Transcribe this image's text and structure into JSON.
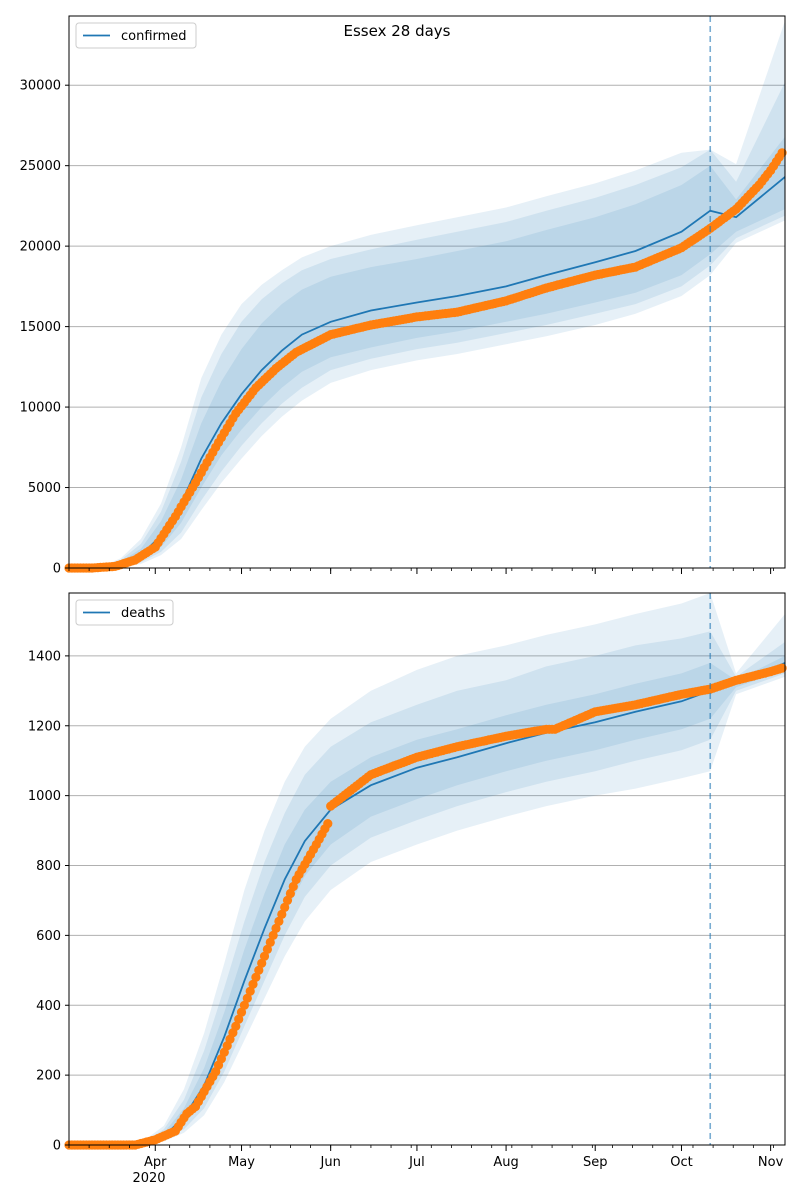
{
  "figure": {
    "title": "Essex 28 days"
  },
  "colors": {
    "model_line": "#1f77b4",
    "band": "#1f77b4",
    "observed": "#ff7f0e",
    "vline": "#1f77b4",
    "grid": "#b0b0b0",
    "axes": "#000000"
  },
  "x_axis": {
    "month_labels": [
      "Apr",
      "May",
      "Jun",
      "Jul",
      "Aug",
      "Sep",
      "Oct",
      "Nov"
    ],
    "year_label": "2020"
  },
  "chart_data": [
    {
      "type": "line",
      "legend": "confirmed",
      "legend_position": "top-left",
      "grid": "horizontal",
      "xlim": [
        "2020-03-02",
        "2020-11-06"
      ],
      "ylim": [
        0,
        34300
      ],
      "yticks": [
        "0",
        "5000",
        "10000",
        "15000",
        "20000",
        "25000",
        "30000"
      ],
      "ytick_values": [
        0,
        5000,
        10000,
        15000,
        20000,
        25000,
        30000
      ],
      "forecast_start": "2020-10-11",
      "series": [
        {
          "name": "confirmed",
          "kind": "model",
          "x": [
            "2020-03-02",
            "2020-03-12",
            "2020-03-20",
            "2020-03-27",
            "2020-04-03",
            "2020-04-10",
            "2020-04-17",
            "2020-04-24",
            "2020-05-01",
            "2020-05-08",
            "2020-05-15",
            "2020-05-22",
            "2020-06-01",
            "2020-06-15",
            "2020-07-01",
            "2020-07-15",
            "2020-08-01",
            "2020-08-15",
            "2020-09-01",
            "2020-09-15",
            "2020-10-01",
            "2020-10-11",
            "2020-10-20",
            "2020-11-06"
          ],
          "y": [
            0,
            0,
            200,
            800,
            2000,
            4000,
            6800,
            9000,
            10800,
            12300,
            13500,
            14500,
            15300,
            16000,
            16500,
            16900,
            17500,
            18200,
            19000,
            19700,
            20900,
            22200,
            21800,
            24300
          ],
          "bands": [
            {
              "lower": [
                0,
                0,
                100,
                500,
                1300,
                2800,
                5000,
                7000,
                8600,
                10000,
                11200,
                12200,
                13100,
                13700,
                14300,
                14700,
                15300,
                15800,
                16500,
                17100,
                18200,
                19500,
                20900,
                22300
              ],
              "upper": [
                0,
                0,
                400,
                1200,
                2900,
                5500,
                9000,
                11600,
                13600,
                15200,
                16400,
                17300,
                18100,
                18700,
                19200,
                19700,
                20300,
                21000,
                21800,
                22600,
                23800,
                25000,
                22900,
                26800
              ]
            },
            {
              "lower": [
                0,
                0,
                50,
                350,
                1000,
                2200,
                4200,
                6000,
                7600,
                9000,
                10200,
                11200,
                12300,
                13000,
                13600,
                14000,
                14600,
                15100,
                15800,
                16400,
                17500,
                18800,
                20500,
                21900
              ],
              "upper": [
                0,
                0,
                500,
                1500,
                3500,
                6600,
                10600,
                13300,
                15300,
                16700,
                17700,
                18500,
                19200,
                19800,
                20400,
                20900,
                21500,
                22200,
                23000,
                23800,
                24900,
                26000,
                24000,
                30200
              ]
            },
            {
              "lower": [
                0,
                0,
                20,
                250,
                800,
                1800,
                3600,
                5300,
                6800,
                8200,
                9400,
                10400,
                11500,
                12300,
                12900,
                13300,
                13900,
                14400,
                15100,
                15800,
                16900,
                18200,
                20200,
                21600
              ],
              "upper": [
                0,
                0,
                600,
                1800,
                4000,
                7500,
                11800,
                14500,
                16400,
                17600,
                18500,
                19300,
                20000,
                20700,
                21300,
                21800,
                22400,
                23100,
                23900,
                24700,
                25800,
                26000,
                25100,
                34000
              ]
            }
          ]
        },
        {
          "name": "",
          "kind": "observed",
          "x": [
            "2020-03-02",
            "2020-03-10",
            "2020-03-18",
            "2020-03-25",
            "2020-04-01",
            "2020-04-08",
            "2020-04-15",
            "2020-04-22",
            "2020-04-29",
            "2020-05-06",
            "2020-05-13",
            "2020-05-20",
            "2020-06-01",
            "2020-06-15",
            "2020-07-01",
            "2020-07-15",
            "2020-08-01",
            "2020-08-15",
            "2020-09-01",
            "2020-09-15",
            "2020-10-01",
            "2020-10-11",
            "2020-10-20",
            "2020-10-28",
            "2020-11-01",
            "2020-11-05"
          ],
          "y": [
            0,
            0,
            100,
            500,
            1300,
            3200,
            5300,
            7500,
            9600,
            11200,
            12400,
            13400,
            14500,
            15100,
            15600,
            15900,
            16600,
            17400,
            18200,
            18700,
            19900,
            21100,
            22300,
            23800,
            24700,
            25800
          ]
        }
      ]
    },
    {
      "type": "line",
      "legend": "deaths",
      "legend_position": "top-left",
      "grid": "horizontal",
      "xlim": [
        "2020-03-02",
        "2020-11-06"
      ],
      "ylim": [
        0,
        1580
      ],
      "yticks": [
        "0",
        "200",
        "400",
        "600",
        "800",
        "1000",
        "1200",
        "1400"
      ],
      "ytick_values": [
        0,
        200,
        400,
        600,
        800,
        1000,
        1200,
        1400
      ],
      "forecast_start": "2020-10-11",
      "series": [
        {
          "name": "deaths",
          "kind": "model",
          "x": [
            "2020-03-02",
            "2020-03-20",
            "2020-03-28",
            "2020-04-04",
            "2020-04-11",
            "2020-04-18",
            "2020-04-25",
            "2020-05-02",
            "2020-05-09",
            "2020-05-16",
            "2020-05-23",
            "2020-06-01",
            "2020-06-15",
            "2020-07-01",
            "2020-07-15",
            "2020-08-01",
            "2020-08-15",
            "2020-09-01",
            "2020-09-15",
            "2020-10-01",
            "2020-10-11",
            "2020-10-20",
            "2020-11-06"
          ],
          "y": [
            0,
            0,
            5,
            25,
            80,
            170,
            310,
            470,
            620,
            760,
            870,
            960,
            1030,
            1080,
            1110,
            1150,
            1180,
            1210,
            1240,
            1270,
            1300,
            1320,
            1380
          ],
          "bands": [
            {
              "lower": [
                0,
                0,
                3,
                18,
                60,
                130,
                250,
                390,
                530,
                660,
                770,
                860,
                940,
                990,
                1030,
                1070,
                1100,
                1130,
                1160,
                1190,
                1220,
                1310,
                1360
              ],
              "upper": [
                0,
                0,
                7,
                35,
                105,
                220,
                380,
                560,
                720,
                860,
                960,
                1040,
                1110,
                1160,
                1190,
                1230,
                1260,
                1290,
                1320,
                1350,
                1380,
                1330,
                1400
              ]
            },
            {
              "lower": [
                0,
                0,
                2,
                14,
                45,
                105,
                210,
                340,
                470,
                600,
                710,
                800,
                880,
                930,
                970,
                1010,
                1040,
                1070,
                1100,
                1130,
                1160,
                1300,
                1350
              ],
              "upper": [
                0,
                0,
                9,
                45,
                130,
                270,
                450,
                640,
                810,
                950,
                1060,
                1140,
                1210,
                1260,
                1300,
                1330,
                1370,
                1400,
                1430,
                1450,
                1470,
                1340,
                1440
              ]
            },
            {
              "lower": [
                0,
                0,
                1,
                10,
                35,
                85,
                180,
                300,
                420,
                540,
                640,
                730,
                810,
                860,
                900,
                940,
                970,
                1000,
                1020,
                1050,
                1070,
                1290,
                1340
              ],
              "upper": [
                0,
                0,
                12,
                55,
                160,
                320,
                520,
                730,
                900,
                1040,
                1140,
                1220,
                1300,
                1360,
                1400,
                1430,
                1460,
                1490,
                1520,
                1550,
                1580,
                1350,
                1520
              ]
            }
          ]
        },
        {
          "name": "",
          "kind": "observed",
          "x": [
            "2020-03-02",
            "2020-03-25",
            "2020-04-01",
            "2020-04-08",
            "2020-04-12",
            "2020-04-15",
            "2020-04-22",
            "2020-04-29",
            "2020-05-06",
            "2020-05-13",
            "2020-05-20",
            "2020-05-27",
            "2020-05-31",
            "2020-06-01",
            "2020-06-15",
            "2020-07-01",
            "2020-07-15",
            "2020-08-01",
            "2020-08-15",
            "2020-08-18",
            "2020-09-01",
            "2020-09-15",
            "2020-10-01",
            "2020-10-11",
            "2020-10-20",
            "2020-11-01",
            "2020-11-05"
          ],
          "y": [
            0,
            0,
            15,
            40,
            90,
            110,
            210,
            340,
            480,
            620,
            760,
            860,
            920,
            970,
            1060,
            1110,
            1140,
            1170,
            1190,
            1190,
            1240,
            1260,
            1290,
            1305,
            1330,
            1355,
            1365
          ]
        }
      ]
    }
  ]
}
